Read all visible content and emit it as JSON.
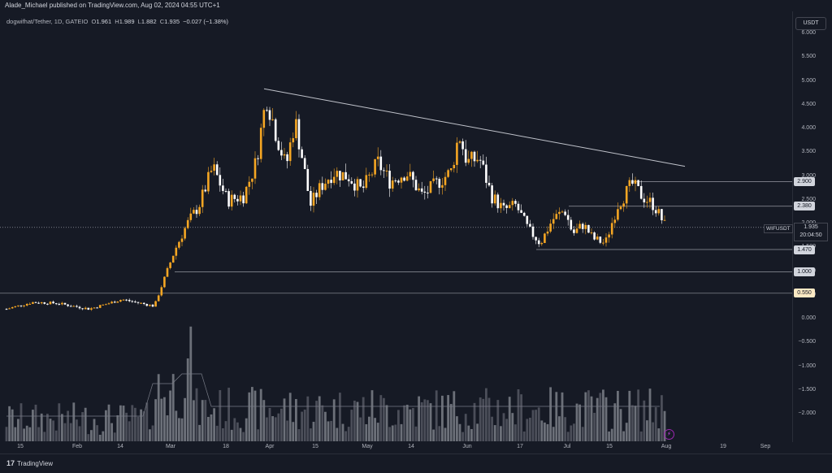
{
  "publisher": "Alade_Michael published on TradingView.com, Aug 02, 2024 04:55 UTC+1",
  "legend": {
    "symbol": "dogwifhat/Tether, 1D, GATEIO",
    "o_label": "O",
    "o": "1.961",
    "h_label": "H",
    "h": "1.989",
    "l_label": "L",
    "l": "1.882",
    "c_label": "C",
    "c": "1.935",
    "change": "−0.027 (−1.38%)"
  },
  "currency_button": "USDT",
  "y_ticks": [
    "6.000",
    "5.500",
    "5.000",
    "4.500",
    "4.000",
    "3.500",
    "3.000",
    "2.500",
    "2.000",
    "1.500",
    "1.000",
    "0.500",
    "0.000",
    "−0.500",
    "−1.000",
    "−1.500",
    "−2.000"
  ],
  "x_ticks": [
    "15",
    "Feb",
    "14",
    "Mar",
    "18",
    "Apr",
    "15",
    "May",
    "14",
    "Jun",
    "17",
    "Jul",
    "15",
    "Aug",
    "19",
    "Sep"
  ],
  "price_levels": [
    {
      "value": "2.900",
      "bg": "#d1d4dc",
      "fg": "#131722"
    },
    {
      "value": "2.380",
      "bg": "#d1d4dc",
      "fg": "#131722"
    },
    {
      "value": "1.470",
      "bg": "#d1d4dc",
      "fg": "#131722"
    },
    {
      "value": "1.000",
      "bg": "#d1d4dc",
      "fg": "#131722"
    },
    {
      "value": "0.550",
      "bg": "#fbe9c4",
      "fg": "#131722"
    }
  ],
  "symbol_badge": "WIFUSDT",
  "current_price": "1.935",
  "countdown": "20:04:50",
  "tv_brand": "TradingView",
  "colors": {
    "bull": "#f5a623",
    "bear": "#ffffff",
    "bg": "#161a25",
    "line": "#c0c3cb"
  },
  "chart_data": {
    "type": "candlestick",
    "title": "dogwifhat/Tether, 1D, GATEIO",
    "ylim": [
      -2.5,
      6.2
    ],
    "x_range": [
      "Jan 10, 2024",
      "Sep 10, 2024"
    ],
    "horizontal_levels": [
      2.9,
      2.38,
      1.47,
      1.0,
      0.55
    ],
    "trendline": {
      "from": {
        "date": "Mar 31",
        "price": 4.85
      },
      "to": {
        "date": "Aug 20",
        "price": 3.22
      }
    }
  }
}
